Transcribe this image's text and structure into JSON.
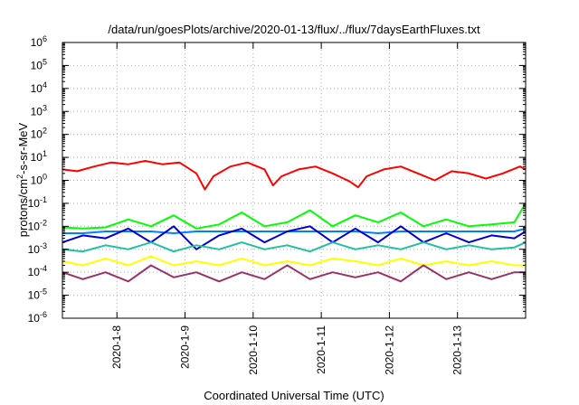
{
  "chart_data": {
    "type": "line",
    "title": "/data/run/goesPlots/archive/2020-01-13/flux/../flux/7daysEarthFluxes.txt",
    "xlabel": "Coordinated Universal Time (UTC)",
    "ylabel_parts": [
      "protons/cm",
      "2",
      "-s-sr-MeV"
    ],
    "yscale": "log",
    "ylim": [
      1e-06,
      1000000.0
    ],
    "xlim": [
      "2020-01-07T04:48",
      "2020-01-14T00:00"
    ],
    "grid": true,
    "y_ticks": [
      {
        "base": "10",
        "exp": "-6"
      },
      {
        "base": "10",
        "exp": "-5"
      },
      {
        "base": "10",
        "exp": "-4"
      },
      {
        "base": "10",
        "exp": "-3"
      },
      {
        "base": "10",
        "exp": "-2"
      },
      {
        "base": "10",
        "exp": "-1"
      },
      {
        "base": "10",
        "exp": "0"
      },
      {
        "base": "10",
        "exp": "1"
      },
      {
        "base": "10",
        "exp": "2"
      },
      {
        "base": "10",
        "exp": "3"
      },
      {
        "base": "10",
        "exp": "4"
      },
      {
        "base": "10",
        "exp": "5"
      },
      {
        "base": "10",
        "exp": "6"
      }
    ],
    "x_ticks": [
      "2020-1-8",
      "2020-1-9",
      "2020-1-10",
      "2020-1-11",
      "2020-1-12",
      "2020-1-13"
    ],
    "x_tick_dates": [
      "2020-01-08",
      "2020-01-09",
      "2020-01-10",
      "2020-01-11",
      "2020-01-12",
      "2020-01-13"
    ],
    "series": [
      {
        "color": "#ff0000",
        "x": [
          "2020-01-07T04:48",
          "2020-01-07T10:00",
          "2020-01-07T16:00",
          "2020-01-07T22:00",
          "2020-01-08T04:00",
          "2020-01-08T10:00",
          "2020-01-08T16:00",
          "2020-01-08T22:00",
          "2020-01-09T04:00",
          "2020-01-09T07:00",
          "2020-01-09T10:00",
          "2020-01-09T16:00",
          "2020-01-09T22:00",
          "2020-01-10T04:00",
          "2020-01-10T07:00",
          "2020-01-10T10:00",
          "2020-01-10T16:00",
          "2020-01-10T22:00",
          "2020-01-11T04:00",
          "2020-01-11T10:00",
          "2020-01-11T13:00",
          "2020-01-11T16:00",
          "2020-01-11T22:00",
          "2020-01-12T04:00",
          "2020-01-12T10:00",
          "2020-01-12T16:00",
          "2020-01-12T22:00",
          "2020-01-13T04:00",
          "2020-01-13T10:00",
          "2020-01-13T16:00",
          "2020-01-13T22:00",
          "2020-01-14T00:00"
        ],
        "y": [
          3,
          2.5,
          4,
          6,
          5,
          7,
          5,
          6,
          2,
          0.4,
          1.5,
          4,
          6,
          3,
          0.6,
          1.5,
          3,
          4,
          2,
          0.9,
          0.5,
          1.5,
          3,
          4,
          2,
          1,
          2.5,
          2,
          1.2,
          2,
          4,
          3
        ]
      },
      {
        "color": "#00ff00",
        "x": [
          "2020-01-07T04:48",
          "2020-01-07T12:00",
          "2020-01-07T20:00",
          "2020-01-08T04:00",
          "2020-01-08T12:00",
          "2020-01-08T20:00",
          "2020-01-09T04:00",
          "2020-01-09T12:00",
          "2020-01-09T20:00",
          "2020-01-10T04:00",
          "2020-01-10T12:00",
          "2020-01-10T20:00",
          "2020-01-11T04:00",
          "2020-01-11T12:00",
          "2020-01-11T20:00",
          "2020-01-12T04:00",
          "2020-01-12T12:00",
          "2020-01-12T20:00",
          "2020-01-13T04:00",
          "2020-01-13T12:00",
          "2020-01-13T20:00",
          "2020-01-14T00:00"
        ],
        "y": [
          0.009,
          0.008,
          0.009,
          0.02,
          0.01,
          0.03,
          0.008,
          0.012,
          0.04,
          0.01,
          0.015,
          0.05,
          0.01,
          0.03,
          0.015,
          0.04,
          0.01,
          0.02,
          0.01,
          0.012,
          0.015,
          0.1
        ]
      },
      {
        "color": "#0080ff",
        "x": [
          "2020-01-07T04:48",
          "2020-01-07T12:00",
          "2020-01-07T20:00",
          "2020-01-08T04:00",
          "2020-01-08T12:00",
          "2020-01-08T20:00",
          "2020-01-09T04:00",
          "2020-01-09T12:00",
          "2020-01-09T20:00",
          "2020-01-10T04:00",
          "2020-01-10T12:00",
          "2020-01-10T20:00",
          "2020-01-11T04:00",
          "2020-01-11T12:00",
          "2020-01-11T20:00",
          "2020-01-12T04:00",
          "2020-01-12T12:00",
          "2020-01-12T20:00",
          "2020-01-13T04:00",
          "2020-01-13T12:00",
          "2020-01-13T20:00",
          "2020-01-14T00:00"
        ],
        "y": [
          0.005,
          0.005,
          0.006,
          0.006,
          0.006,
          0.005,
          0.006,
          0.006,
          0.006,
          0.006,
          0.006,
          0.006,
          0.006,
          0.006,
          0.005,
          0.006,
          0.006,
          0.006,
          0.006,
          0.006,
          0.006,
          0.008
        ]
      },
      {
        "color": "#0000cc",
        "x": [
          "2020-01-07T04:48",
          "2020-01-07T12:00",
          "2020-01-07T20:00",
          "2020-01-08T04:00",
          "2020-01-08T12:00",
          "2020-01-08T20:00",
          "2020-01-09T04:00",
          "2020-01-09T12:00",
          "2020-01-09T20:00",
          "2020-01-10T04:00",
          "2020-01-10T12:00",
          "2020-01-10T20:00",
          "2020-01-11T04:00",
          "2020-01-11T12:00",
          "2020-01-11T20:00",
          "2020-01-12T04:00",
          "2020-01-12T12:00",
          "2020-01-12T20:00",
          "2020-01-13T04:00",
          "2020-01-13T12:00",
          "2020-01-13T20:00",
          "2020-01-14T00:00"
        ],
        "y": [
          0.002,
          0.004,
          0.003,
          0.008,
          0.002,
          0.01,
          0.001,
          0.004,
          0.008,
          0.002,
          0.006,
          0.01,
          0.002,
          0.008,
          0.002,
          0.01,
          0.002,
          0.005,
          0.002,
          0.004,
          0.003,
          0.006
        ]
      },
      {
        "color": "#20c0a0",
        "x": [
          "2020-01-07T04:48",
          "2020-01-07T12:00",
          "2020-01-07T20:00",
          "2020-01-08T04:00",
          "2020-01-08T12:00",
          "2020-01-08T20:00",
          "2020-01-09T04:00",
          "2020-01-09T12:00",
          "2020-01-09T20:00",
          "2020-01-10T04:00",
          "2020-01-10T12:00",
          "2020-01-10T20:00",
          "2020-01-11T04:00",
          "2020-01-11T12:00",
          "2020-01-11T20:00",
          "2020-01-12T04:00",
          "2020-01-12T12:00",
          "2020-01-12T20:00",
          "2020-01-13T04:00",
          "2020-01-13T12:00",
          "2020-01-13T20:00",
          "2020-01-14T00:00"
        ],
        "y": [
          0.001,
          0.0008,
          0.0015,
          0.001,
          0.002,
          0.0008,
          0.0015,
          0.001,
          0.002,
          0.001,
          0.0015,
          0.0008,
          0.002,
          0.001,
          0.0015,
          0.001,
          0.002,
          0.001,
          0.0015,
          0.001,
          0.0012,
          0.002
        ]
      },
      {
        "color": "#ffff00",
        "x": [
          "2020-01-07T04:48",
          "2020-01-07T12:00",
          "2020-01-07T20:00",
          "2020-01-08T04:00",
          "2020-01-08T12:00",
          "2020-01-08T20:00",
          "2020-01-09T04:00",
          "2020-01-09T12:00",
          "2020-01-09T20:00",
          "2020-01-10T04:00",
          "2020-01-10T12:00",
          "2020-01-10T20:00",
          "2020-01-11T04:00",
          "2020-01-11T12:00",
          "2020-01-11T20:00",
          "2020-01-12T04:00",
          "2020-01-12T12:00",
          "2020-01-12T20:00",
          "2020-01-13T04:00",
          "2020-01-13T12:00",
          "2020-01-13T20:00",
          "2020-01-14T00:00"
        ],
        "y": [
          0.0003,
          0.0002,
          0.0004,
          0.0002,
          0.0005,
          0.0002,
          0.0003,
          0.0002,
          0.0004,
          0.0002,
          0.0003,
          0.0002,
          0.0004,
          0.0003,
          0.0002,
          0.0004,
          0.0002,
          0.0003,
          0.0002,
          0.0003,
          0.0002,
          0.0002
        ]
      },
      {
        "color": "#993366",
        "x": [
          "2020-01-07T04:48",
          "2020-01-07T12:00",
          "2020-01-07T20:00",
          "2020-01-08T04:00",
          "2020-01-08T12:00",
          "2020-01-08T20:00",
          "2020-01-09T04:00",
          "2020-01-09T12:00",
          "2020-01-09T20:00",
          "2020-01-10T04:00",
          "2020-01-10T12:00",
          "2020-01-10T20:00",
          "2020-01-11T04:00",
          "2020-01-11T12:00",
          "2020-01-11T20:00",
          "2020-01-12T04:00",
          "2020-01-12T12:00",
          "2020-01-12T20:00",
          "2020-01-13T04:00",
          "2020-01-13T12:00",
          "2020-01-13T20:00",
          "2020-01-14T00:00"
        ],
        "y": [
          0.0001,
          5e-05,
          0.0001,
          4e-05,
          0.0002,
          6e-05,
          0.0001,
          4e-05,
          0.0001,
          5e-05,
          0.0002,
          5e-05,
          0.0001,
          6e-05,
          0.0001,
          4e-05,
          0.0002,
          5e-05,
          0.0001,
          5e-05,
          0.0001,
          0.0001
        ]
      }
    ]
  }
}
